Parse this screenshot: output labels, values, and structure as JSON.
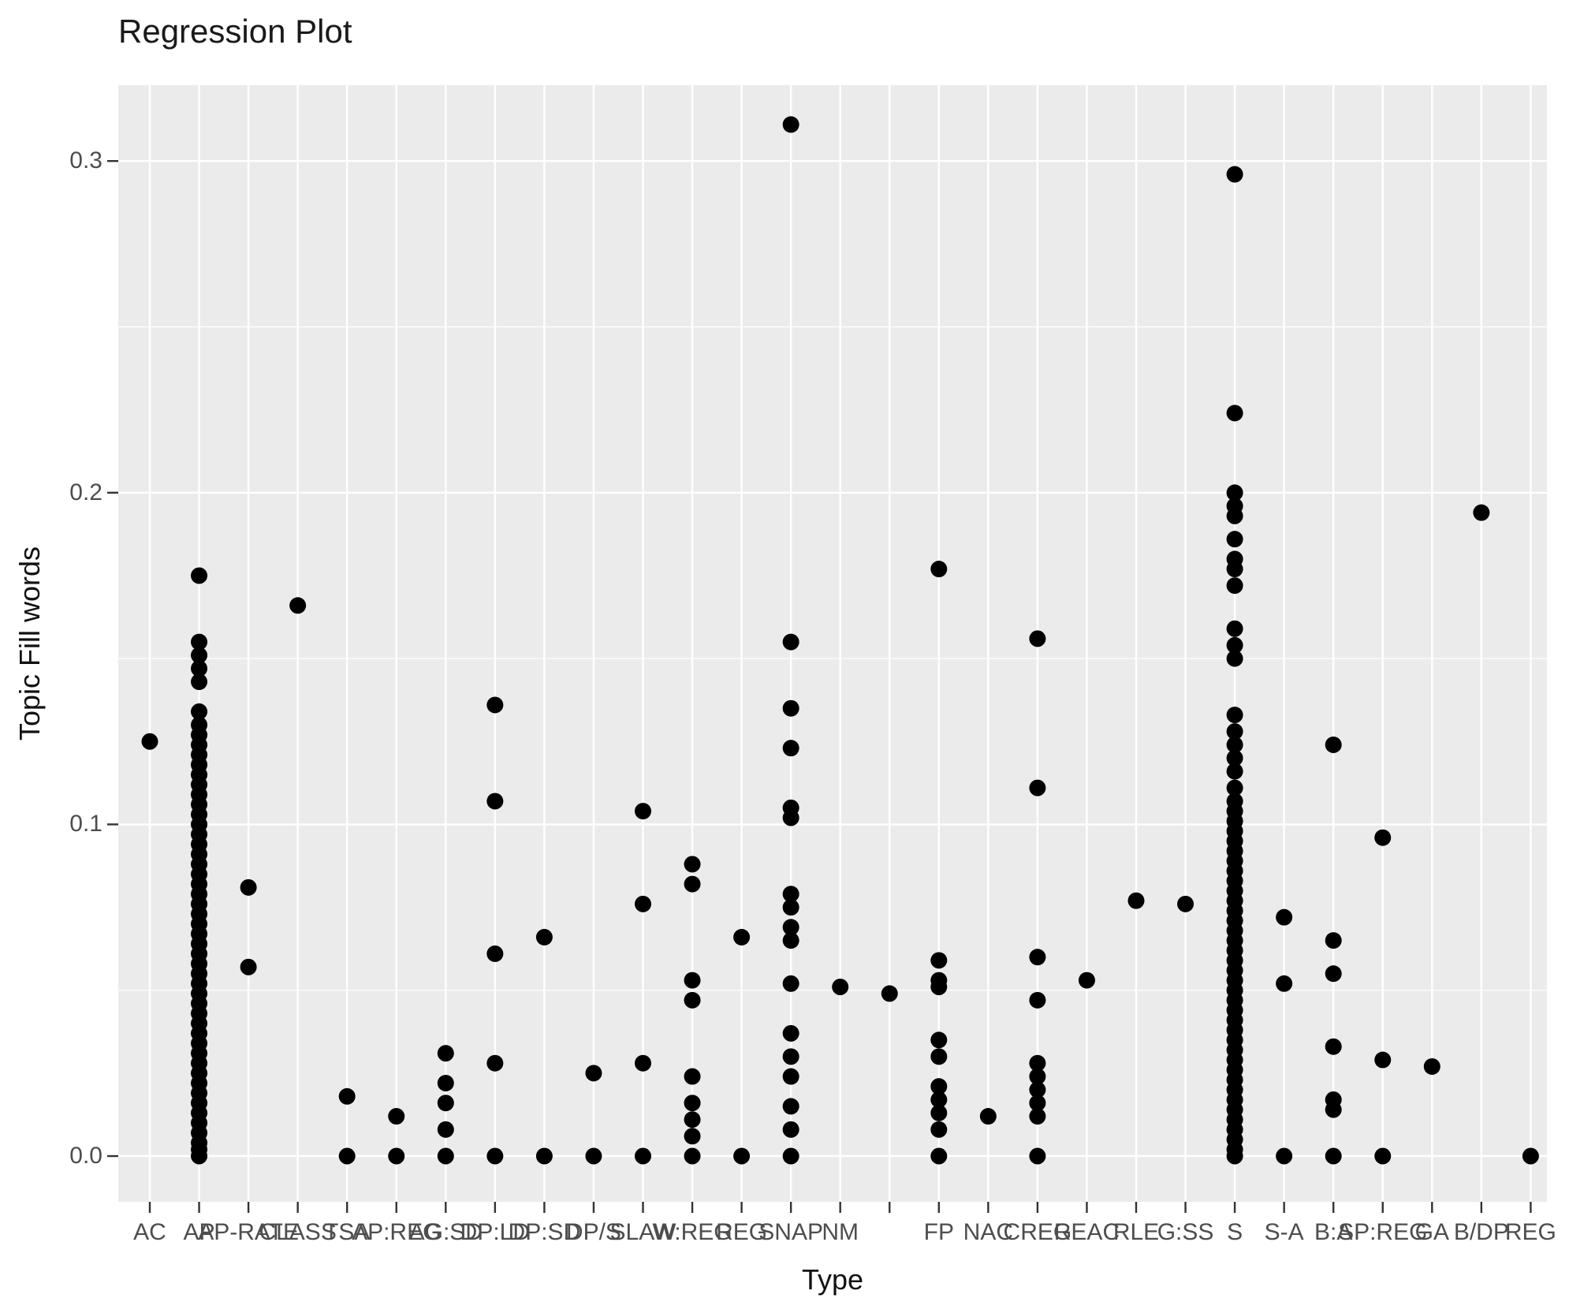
{
  "title": "Regression Plot",
  "theme": {
    "panel_bg": "#EBEBEB",
    "grid_color": "#FFFFFF",
    "point_color": "#000000",
    "axis_text_color": "#4D4D4D",
    "tick_mark_color": "#333333",
    "title_color": "#1A1A1A"
  },
  "chart_data": {
    "type": "scatter",
    "title": "Regression Plot",
    "xlabel": "Type",
    "ylabel": "Topic Fill words",
    "legend": "none",
    "grid": "on",
    "ylim": [
      -0.014,
      0.323
    ],
    "y_major_ticks": [
      {
        "value": 0.0,
        "label": "0.0"
      },
      {
        "value": 0.1,
        "label": "0.1"
      },
      {
        "value": 0.2,
        "label": "0.2"
      },
      {
        "value": 0.3,
        "label": "0.3"
      }
    ],
    "y_minor_ticks": [
      0.05,
      0.15,
      0.25
    ],
    "categories": [
      "AC",
      "AP",
      "AP-RATE",
      "CLASS",
      "TSA",
      "AP:REG",
      "AG:SD",
      "DP:LD",
      "DP:SD",
      "DP/S",
      "SLAW",
      "W:REG",
      "REG",
      "SNAP",
      "NM",
      "",
      "FP",
      "NAC",
      "CREG",
      "REAC",
      "RLE",
      "G:SS",
      "S",
      "S-A",
      "B:A",
      "SP:REG",
      "GA",
      "B/DP",
      "REG"
    ],
    "points": [
      {
        "category": "AC",
        "values": [
          0.125
        ]
      },
      {
        "category": "AP",
        "values": [
          0.175,
          0.155,
          0.151,
          0.147,
          0.143,
          0.134,
          0.13,
          0.127,
          0.124,
          0.121,
          0.118,
          0.115,
          0.112,
          0.109,
          0.106,
          0.103,
          0.1,
          0.097,
          0.094,
          0.091,
          0.088,
          0.085,
          0.082,
          0.079,
          0.076,
          0.073,
          0.07,
          0.067,
          0.064,
          0.061,
          0.058,
          0.055,
          0.052,
          0.049,
          0.046,
          0.043,
          0.04,
          0.037,
          0.034,
          0.031,
          0.028,
          0.025,
          0.022,
          0.019,
          0.016,
          0.013,
          0.01,
          0.007,
          0.004,
          0.002,
          0.0
        ]
      },
      {
        "category": "AP-RATE",
        "values": [
          0.081,
          0.057
        ]
      },
      {
        "category": "CLASS",
        "values": [
          0.166
        ]
      },
      {
        "category": "TSA",
        "values": [
          0.018,
          0.0
        ]
      },
      {
        "category": "AP:REG",
        "values": [
          0.012,
          0.0
        ]
      },
      {
        "category": "AG:SD",
        "values": [
          0.031,
          0.022,
          0.016,
          0.008,
          0.0
        ]
      },
      {
        "category": "DP:LD",
        "values": [
          0.136,
          0.107,
          0.061,
          0.028,
          0.0
        ]
      },
      {
        "category": "DP:SD",
        "values": [
          0.066,
          0.0
        ]
      },
      {
        "category": "DP/S",
        "values": [
          0.025,
          0.0
        ]
      },
      {
        "category": "SLAW",
        "values": [
          0.104,
          0.076,
          0.028,
          0.0
        ]
      },
      {
        "category": "W:REG",
        "values": [
          0.088,
          0.082,
          0.053,
          0.047,
          0.024,
          0.016,
          0.011,
          0.006,
          0.0
        ]
      },
      {
        "category": "REG",
        "values": [
          0.066,
          0.0
        ]
      },
      {
        "category": "SNAP",
        "values": [
          0.311,
          0.155,
          0.135,
          0.123,
          0.105,
          0.102,
          0.079,
          0.075,
          0.069,
          0.065,
          0.052,
          0.037,
          0.03,
          0.024,
          0.015,
          0.008,
          0.0
        ]
      },
      {
        "category": "NM",
        "values": [
          0.051
        ]
      },
      {
        "category": "",
        "values": [
          0.049
        ]
      },
      {
        "category": "FP",
        "values": [
          0.177,
          0.059,
          0.053,
          0.051,
          0.035,
          0.03,
          0.021,
          0.017,
          0.013,
          0.008,
          0.0
        ]
      },
      {
        "category": "NAC",
        "values": [
          0.012
        ]
      },
      {
        "category": "CREG",
        "values": [
          0.156,
          0.111,
          0.06,
          0.047,
          0.028,
          0.024,
          0.02,
          0.016,
          0.012,
          0.0
        ]
      },
      {
        "category": "REAC",
        "values": [
          0.053
        ]
      },
      {
        "category": "RLE",
        "values": [
          0.077
        ]
      },
      {
        "category": "G:SS",
        "values": [
          0.076
        ]
      },
      {
        "category": "S",
        "values": [
          0.296,
          0.224,
          0.2,
          0.196,
          0.193,
          0.186,
          0.18,
          0.177,
          0.172,
          0.159,
          0.154,
          0.15,
          0.133,
          0.128,
          0.124,
          0.12,
          0.116,
          0.111,
          0.107,
          0.104,
          0.101,
          0.098,
          0.095,
          0.092,
          0.089,
          0.086,
          0.083,
          0.08,
          0.077,
          0.074,
          0.071,
          0.068,
          0.065,
          0.062,
          0.059,
          0.056,
          0.053,
          0.05,
          0.047,
          0.044,
          0.041,
          0.038,
          0.035,
          0.032,
          0.029,
          0.026,
          0.023,
          0.02,
          0.017,
          0.014,
          0.011,
          0.008,
          0.005,
          0.002,
          0.0
        ]
      },
      {
        "category": "S-A",
        "values": [
          0.072,
          0.052,
          0.0
        ]
      },
      {
        "category": "B:A",
        "values": [
          0.124,
          0.065,
          0.055,
          0.033,
          0.017,
          0.014,
          0.0
        ]
      },
      {
        "category": "SP:REG",
        "values": [
          0.096,
          0.029,
          0.0
        ]
      },
      {
        "category": "GA",
        "values": [
          0.027
        ]
      },
      {
        "category": "B/DP",
        "values": [
          0.194
        ]
      },
      {
        "category": "REG",
        "values": [
          0.0
        ]
      }
    ]
  }
}
